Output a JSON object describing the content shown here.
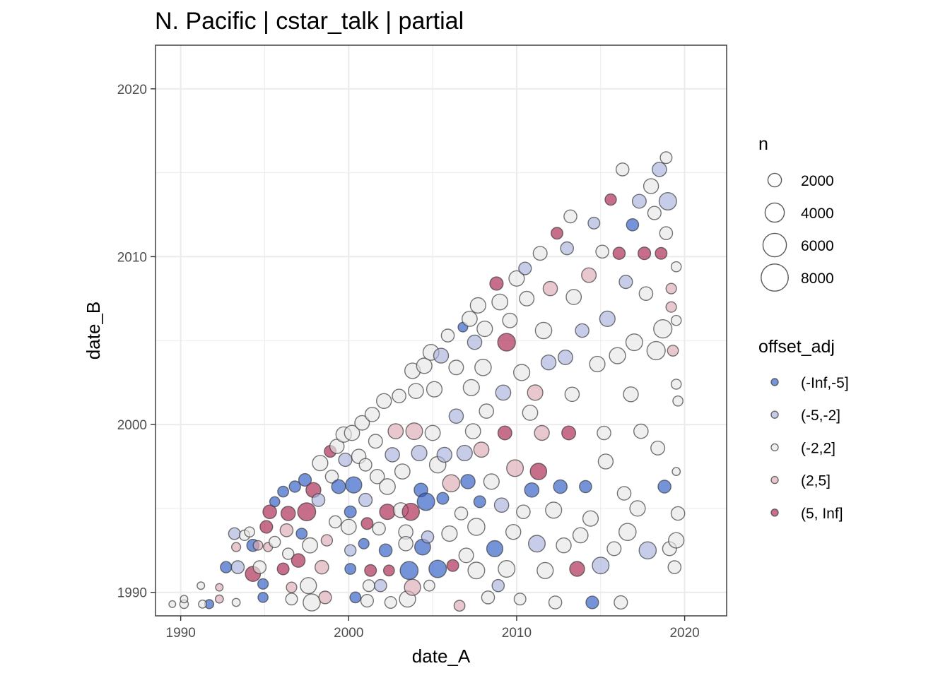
{
  "chart_data": {
    "type": "scatter",
    "title": "N. Pacific | cstar_talk | partial",
    "xlabel": "date_A",
    "ylabel": "date_B",
    "xlim": [
      1988.5,
      2022.5
    ],
    "ylim": [
      1988.6,
      2022.6
    ],
    "x_ticks": [
      1990,
      2000,
      2010,
      2020
    ],
    "y_ticks": [
      1990,
      2000,
      2010,
      2020
    ],
    "x_tick_labels": [
      "1990",
      "2000",
      "2010",
      "2020"
    ],
    "y_tick_labels": [
      "1990",
      "2000",
      "2010",
      "2020"
    ],
    "grid": true,
    "size_legend": {
      "title": "n",
      "breaks": [
        2000,
        4000,
        6000,
        8000
      ],
      "labels": [
        "2000",
        "4000",
        "6000",
        "8000"
      ]
    },
    "color_legend": {
      "title": "offset_adj",
      "categories": [
        "(-Inf,-5]",
        "(-5,-2]",
        "(-2,2]",
        "(2,5]",
        "(5, Inf]"
      ],
      "colors": [
        "#2b59c3",
        "#a9b2dc",
        "#e6e6e6",
        "#dcaab3",
        "#a8214b"
      ]
    },
    "legend_position": "right",
    "points": [
      [
        1989.5,
        1989.3,
        "(-2,2]",
        500
      ],
      [
        1990.2,
        1989.3,
        "(-2,2]",
        800
      ],
      [
        1990.2,
        1989.6,
        "(-2,2]",
        600
      ],
      [
        1991.2,
        1990.4,
        "(-2,2]",
        600
      ],
      [
        1991.7,
        1989.3,
        "(-Inf,-5]",
        900
      ],
      [
        1991.3,
        1989.3,
        "(-2,2]",
        700
      ],
      [
        1992.3,
        1990.3,
        "(2,5]",
        600
      ],
      [
        1992.3,
        1989.6,
        "(2,5]",
        700
      ],
      [
        1993.3,
        1989.4,
        "(-2,2]",
        700
      ],
      [
        1992.7,
        1991.5,
        "(-Inf,-5]",
        1400
      ],
      [
        1993.4,
        1991.5,
        "(-5,-2]",
        1800
      ],
      [
        1993.3,
        1992.7,
        "(2,5]",
        900
      ],
      [
        1993.2,
        1993.5,
        "(-5,-2]",
        1500
      ],
      [
        1993.8,
        1993.4,
        "(-2,2]",
        1200
      ],
      [
        1994.1,
        1993.6,
        "(-2,2]",
        1100
      ],
      [
        1994.3,
        1991.1,
        "(5, Inf]",
        2500
      ],
      [
        1994.7,
        1991.5,
        "(-2,2]",
        1800
      ],
      [
        1994.3,
        1992.8,
        "(-Inf,-5]",
        1600
      ],
      [
        1994.6,
        1992.8,
        "(2,5]",
        1000
      ],
      [
        1994.9,
        1990.5,
        "(-Inf,-5]",
        1200
      ],
      [
        1994.9,
        1989.7,
        "(-Inf,-5]",
        1100
      ],
      [
        1995.2,
        1992.7,
        "(2,5]",
        900
      ],
      [
        1995.1,
        1993.9,
        "(5, Inf]",
        1700
      ],
      [
        1995.3,
        1994.8,
        "(5, Inf]",
        2000
      ],
      [
        1995.6,
        1995.4,
        "(-Inf,-5]",
        1100
      ],
      [
        1995.6,
        1993.0,
        "(-2,2]",
        1400
      ],
      [
        1996.1,
        1991.4,
        "(5, Inf]",
        1500
      ],
      [
        1996.1,
        1996.0,
        "(-Inf,-5]",
        1300
      ],
      [
        1996.3,
        1993.7,
        "(2,5]",
        1800
      ],
      [
        1996.4,
        1992.3,
        "(-2,2]",
        1400
      ],
      [
        1996.6,
        1990.3,
        "(2,5]",
        1200
      ],
      [
        1996.6,
        1989.6,
        "(-2,2]",
        1500
      ],
      [
        1996.4,
        1994.7,
        "(5, Inf]",
        2200
      ],
      [
        1996.8,
        1996.3,
        "(-Inf,-5]",
        1400
      ],
      [
        1997.0,
        1991.9,
        "(5, Inf]",
        2000
      ],
      [
        1997.2,
        1993.5,
        "(-Inf,-5]",
        1300
      ],
      [
        1997.4,
        1996.7,
        "(-Inf,-5]",
        1700
      ],
      [
        1997.5,
        1994.8,
        "(5, Inf]",
        3500
      ],
      [
        1997.7,
        1992.8,
        "(-2,2]",
        2500
      ],
      [
        1997.6,
        1990.4,
        "(-2,2]",
        2800
      ],
      [
        1997.8,
        1989.4,
        "(-2,2]",
        3200
      ],
      [
        1997.9,
        1996.1,
        "(5, Inf]",
        2400
      ],
      [
        1998.2,
        1995.5,
        "(-5,-2]",
        1800
      ],
      [
        1998.4,
        1991.5,
        "(2,5]",
        2000
      ],
      [
        1998.3,
        1997.7,
        "(-2,2]",
        2600
      ],
      [
        1998.6,
        1989.7,
        "(2,5]",
        1700
      ],
      [
        1998.7,
        1993.1,
        "(2,5]",
        1400
      ],
      [
        1998.9,
        1998.4,
        "(5, Inf]",
        1500
      ],
      [
        1999.0,
        1996.9,
        "(-2,2]",
        1800
      ],
      [
        1999.2,
        1994.2,
        "(-2,2]",
        1600
      ],
      [
        1999.3,
        1998.7,
        "(-2,2]",
        2200
      ],
      [
        1999.4,
        1996.3,
        "(-Inf,-5]",
        2100
      ],
      [
        1999.7,
        1999.4,
        "(-2,2]",
        2600
      ],
      [
        1999.8,
        1997.9,
        "(-5,-2]",
        1900
      ],
      [
        2000.0,
        1993.9,
        "(-2,2]",
        2500
      ],
      [
        2000.1,
        1994.8,
        "(-Inf,-5]",
        1500
      ],
      [
        2000.1,
        1992.5,
        "(-5,-2]",
        1400
      ],
      [
        2000.1,
        1991.4,
        "(-Inf,-5]",
        1300
      ],
      [
        2000.2,
        1999.5,
        "(-2,2]",
        2500
      ],
      [
        2000.3,
        1996.4,
        "(-Inf,-5]",
        2800
      ],
      [
        2000.4,
        1989.7,
        "(-Inf,-5]",
        1300
      ],
      [
        2000.6,
        1998.1,
        "(-2,2]",
        2200
      ],
      [
        2000.8,
        2000.1,
        "(-2,2]",
        2300
      ],
      [
        2000.9,
        1992.9,
        "(-Inf,-5]",
        1200
      ],
      [
        2001.0,
        1997.6,
        "(-2,2]",
        1700
      ],
      [
        2001.0,
        1995.5,
        "(-5,-2]",
        1900
      ],
      [
        2001.1,
        1994.1,
        "(5, Inf]",
        1500
      ],
      [
        2001.2,
        1990.4,
        "(-2,2]",
        1500
      ],
      [
        2001.1,
        1989.5,
        "(-2,2]",
        1700
      ],
      [
        2001.3,
        1991.3,
        "(5, Inf]",
        1500
      ],
      [
        2001.4,
        2000.6,
        "(-2,2]",
        2200
      ],
      [
        2001.6,
        1999.0,
        "(-2,2]",
        2100
      ],
      [
        2001.7,
        1996.9,
        "(-2,2]",
        2200
      ],
      [
        2001.8,
        1993.8,
        "(-2,2]",
        1800
      ],
      [
        2001.9,
        1990.4,
        "(-5,-2]",
        1600
      ],
      [
        2002.1,
        2001.4,
        "(-2,2]",
        2400
      ],
      [
        2002.2,
        1992.5,
        "(-Inf,-5]",
        1800
      ],
      [
        2002.3,
        1996.3,
        "(-2,2]",
        2700
      ],
      [
        2002.3,
        1994.8,
        "(5, Inf]",
        2600
      ],
      [
        2002.4,
        1991.3,
        "(5, Inf]",
        1300
      ],
      [
        2002.5,
        1989.4,
        "(-2,2]",
        1500
      ],
      [
        2002.6,
        1998.2,
        "(-5,-2]",
        2200
      ],
      [
        2002.8,
        1999.6,
        "(2,5]",
        2500
      ],
      [
        2003.0,
        2001.7,
        "(-2,2]",
        2000
      ],
      [
        2003.1,
        1994.9,
        "(-2,2]",
        2400
      ],
      [
        2003.2,
        1997.2,
        "(-2,2]",
        2500
      ],
      [
        2003.4,
        1993.6,
        "(-2,2]",
        2200
      ],
      [
        2003.4,
        1992.9,
        "(-2,2]",
        2200
      ],
      [
        2003.5,
        1989.6,
        "(-2,2]",
        2800
      ],
      [
        2003.6,
        1991.3,
        "(-Inf,-5]",
        3500
      ],
      [
        2003.7,
        1994.8,
        "(5, Inf]",
        3200
      ],
      [
        2003.8,
        1990.3,
        "(2,5]",
        2800
      ],
      [
        2003.8,
        2003.2,
        "(-2,2]",
        2600
      ],
      [
        2003.9,
        1999.6,
        "(2,5]",
        3000
      ],
      [
        2004.0,
        2002.0,
        "(-2,2]",
        2500
      ],
      [
        2004.2,
        1998.3,
        "(-5,-2]",
        2600
      ],
      [
        2004.3,
        1996.1,
        "(-Inf,-5]",
        2000
      ],
      [
        2004.4,
        1992.7,
        "(-Inf,-5]",
        2700
      ],
      [
        2004.5,
        2003.5,
        "(-2,2]",
        2600
      ],
      [
        2004.6,
        1995.4,
        "(-Inf,-5]",
        3300
      ],
      [
        2004.7,
        1993.3,
        "(-5,-2]",
        1600
      ],
      [
        2004.8,
        1990.4,
        "(-2,2]",
        1300
      ],
      [
        2004.9,
        2004.3,
        "(-2,2]",
        2700
      ],
      [
        2005.0,
        1999.5,
        "(-2,2]",
        2500
      ],
      [
        2005.1,
        2002.1,
        "(-2,2]",
        2600
      ],
      [
        2005.3,
        1991.4,
        "(-Inf,-5]",
        3300
      ],
      [
        2005.3,
        1997.6,
        "(-2,2]",
        2900
      ],
      [
        2005.5,
        2004.1,
        "(-5,-2]",
        2400
      ],
      [
        2005.6,
        1995.6,
        "(-Inf,-5]",
        1500
      ],
      [
        2005.7,
        1998.2,
        "(-5,-2]",
        2400
      ],
      [
        2005.9,
        2005.3,
        "(-2,2]",
        1800
      ],
      [
        2006.0,
        1993.5,
        "(-2,2]",
        2600
      ],
      [
        2006.1,
        1996.5,
        "(2,5]",
        3200
      ],
      [
        2006.2,
        1991.6,
        "(5, Inf]",
        1500
      ],
      [
        2006.4,
        2003.4,
        "(-2,2]",
        2300
      ],
      [
        2006.4,
        2000.5,
        "(-5,-2]",
        2200
      ],
      [
        2006.6,
        1989.2,
        "(2,5]",
        1300
      ],
      [
        2006.7,
        1994.7,
        "(-2,2]",
        1800
      ],
      [
        2006.8,
        2005.8,
        "(-Inf,-5]",
        1000
      ],
      [
        2006.9,
        1998.3,
        "(-5,-2]",
        2600
      ],
      [
        2007.0,
        1992.2,
        "(-2,2]",
        2300
      ],
      [
        2007.1,
        1996.6,
        "(-Inf,-5]",
        2200
      ],
      [
        2007.2,
        2006.3,
        "(-2,2]",
        2500
      ],
      [
        2007.3,
        2002.2,
        "(-2,2]",
        2800
      ],
      [
        2007.4,
        1999.6,
        "(-2,2]",
        2500
      ],
      [
        2007.5,
        2004.9,
        "(-5,-2]",
        2200
      ],
      [
        2007.6,
        1993.9,
        "(-2,2]",
        3200
      ],
      [
        2007.6,
        1991.3,
        "(-2,2]",
        3000
      ],
      [
        2007.7,
        2007.1,
        "(-2,2]",
        2600
      ],
      [
        2007.8,
        1995.4,
        "(-Inf,-5]",
        1500
      ],
      [
        2007.9,
        1998.5,
        "(2,5]",
        2500
      ],
      [
        2008.0,
        2003.4,
        "(-2,2]",
        2900
      ],
      [
        2008.1,
        2005.7,
        "(-2,2]",
        2600
      ],
      [
        2008.2,
        2000.8,
        "(-2,2]",
        2200
      ],
      [
        2008.3,
        1989.7,
        "(-2,2]",
        1800
      ],
      [
        2008.5,
        1996.6,
        "(-2,2]",
        2600
      ],
      [
        2008.7,
        1992.6,
        "(-Inf,-5]",
        2800
      ],
      [
        2008.8,
        2008.4,
        "(5, Inf]",
        1900
      ],
      [
        2008.9,
        1990.4,
        "(-5,-2]",
        1600
      ],
      [
        2009.0,
        2007.3,
        "(-2,2]",
        2700
      ],
      [
        2009.1,
        1995.2,
        "(-5,-2]",
        2200
      ],
      [
        2009.2,
        2001.9,
        "(-5,-2]",
        2500
      ],
      [
        2009.3,
        1999.5,
        "(5, Inf]",
        2100
      ],
      [
        2009.4,
        1991.4,
        "(-2,2]",
        3000
      ],
      [
        2009.4,
        2004.9,
        "(5, Inf]",
        3400
      ],
      [
        2009.6,
        2006.2,
        "(-2,2]",
        2300
      ],
      [
        2009.8,
        1993.6,
        "(-2,2]",
        2400
      ],
      [
        2009.9,
        1997.4,
        "(2,5]",
        3000
      ],
      [
        2010.0,
        2008.7,
        "(-2,2]",
        2600
      ],
      [
        2010.2,
        1989.6,
        "(-2,2]",
        1500
      ],
      [
        2010.3,
        2003.1,
        "(-2,2]",
        2800
      ],
      [
        2010.4,
        1994.8,
        "(-2,2]",
        2000
      ],
      [
        2010.5,
        2009.3,
        "(-5,-2]",
        1700
      ],
      [
        2010.6,
        2007.5,
        "(-2,2]",
        2300
      ],
      [
        2010.8,
        2000.7,
        "(-2,2]",
        2500
      ],
      [
        2010.9,
        1996.1,
        "(-Inf,-5]",
        2200
      ],
      [
        2011.1,
        2001.9,
        "(2,5]",
        2600
      ],
      [
        2011.2,
        1992.9,
        "(-5,-2]",
        3000
      ],
      [
        2011.3,
        1997.2,
        "(5, Inf]",
        2900
      ],
      [
        2011.4,
        2010.2,
        "(-2,2]",
        2100
      ],
      [
        2011.5,
        1999.5,
        "(2,5]",
        2400
      ],
      [
        2011.6,
        2005.6,
        "(-2,2]",
        2900
      ],
      [
        2011.7,
        1991.3,
        "(-2,2]",
        2800
      ],
      [
        2011.9,
        2003.7,
        "(-5,-2]",
        2400
      ],
      [
        2012.0,
        2008.1,
        "(2,5]",
        2200
      ],
      [
        2012.2,
        1994.9,
        "(-2,2]",
        2800
      ],
      [
        2012.3,
        1989.4,
        "(-2,2]",
        1800
      ],
      [
        2012.4,
        2011.4,
        "(5, Inf]",
        1500
      ],
      [
        2012.6,
        1996.3,
        "(-Inf,-5]",
        2000
      ],
      [
        2012.8,
        1992.8,
        "(-2,2]",
        2400
      ],
      [
        2012.9,
        2004.0,
        "(-5,-2]",
        2300
      ],
      [
        2013.0,
        2010.5,
        "(-5,-2]",
        1800
      ],
      [
        2013.1,
        1999.5,
        "(5, Inf]",
        2100
      ],
      [
        2013.2,
        2012.4,
        "(-2,2]",
        1800
      ],
      [
        2013.3,
        2001.8,
        "(-2,2]",
        2200
      ],
      [
        2013.4,
        2007.6,
        "(-2,2]",
        2500
      ],
      [
        2013.6,
        1991.4,
        "(5, Inf]",
        2400
      ],
      [
        2013.8,
        1993.4,
        "(-2,2]",
        2500
      ],
      [
        2013.9,
        2005.6,
        "(-5,-2]",
        2000
      ],
      [
        2014.1,
        1996.3,
        "(-Inf,-5]",
        1600
      ],
      [
        2014.3,
        2008.9,
        "(2,5]",
        2300
      ],
      [
        2014.4,
        1994.4,
        "(-2,2]",
        2600
      ],
      [
        2014.5,
        1989.4,
        "(-Inf,-5]",
        1700
      ],
      [
        2014.6,
        2012.0,
        "(-5,-2]",
        1500
      ],
      [
        2014.8,
        2003.6,
        "(-2,2]",
        2600
      ],
      [
        2015.0,
        1991.6,
        "(-5,-2]",
        3000
      ],
      [
        2015.1,
        2010.3,
        "(-2,2]",
        1800
      ],
      [
        2015.2,
        1999.5,
        "(-2,2]",
        2000
      ],
      [
        2015.3,
        1997.8,
        "(-2,2]",
        2400
      ],
      [
        2015.4,
        2006.3,
        "(-5,-2]",
        2600
      ],
      [
        2015.6,
        2013.4,
        "(5, Inf]",
        1400
      ],
      [
        2015.8,
        1992.6,
        "(-2,2]",
        2100
      ],
      [
        2016.0,
        2004.1,
        "(-2,2]",
        2800
      ],
      [
        2016.1,
        2010.2,
        "(5, Inf]",
        1600
      ],
      [
        2016.2,
        1989.4,
        "(-2,2]",
        1900
      ],
      [
        2016.3,
        2015.2,
        "(-2,2]",
        1800
      ],
      [
        2016.4,
        1995.9,
        "(-2,2]",
        2000
      ],
      [
        2016.5,
        2008.5,
        "(-5,-2]",
        1900
      ],
      [
        2016.6,
        1993.6,
        "(-2,2]",
        3200
      ],
      [
        2016.8,
        2001.8,
        "(-2,2]",
        2400
      ],
      [
        2016.9,
        2011.9,
        "(-Inf,-5]",
        1600
      ],
      [
        2017.0,
        2004.9,
        "(-2,2]",
        3000
      ],
      [
        2017.2,
        1995.0,
        "(-2,2]",
        2600
      ],
      [
        2017.3,
        2013.3,
        "(-5,-2]",
        2100
      ],
      [
        2017.4,
        1999.6,
        "(-2,2]",
        2200
      ],
      [
        2017.6,
        2010.2,
        "(5, Inf]",
        1700
      ],
      [
        2017.7,
        2007.8,
        "(-2,2]",
        2000
      ],
      [
        2017.8,
        1992.5,
        "(-5,-2]",
        3200
      ],
      [
        2018.0,
        2014.2,
        "(-2,2]",
        2400
      ],
      [
        2018.2,
        2012.6,
        "(-2,2]",
        1900
      ],
      [
        2018.3,
        2004.4,
        "(-2,2]",
        3600
      ],
      [
        2018.4,
        1998.6,
        "(-2,2]",
        2100
      ],
      [
        2018.5,
        2015.2,
        "(-5,-2]",
        2200
      ],
      [
        2018.6,
        2010.2,
        "(5, Inf]",
        1500
      ],
      [
        2018.7,
        2005.7,
        "(-2,2]",
        3600
      ],
      [
        2018.8,
        1996.3,
        "(-Inf,-5]",
        1800
      ],
      [
        2018.9,
        2015.9,
        "(-2,2]",
        1500
      ],
      [
        2018.9,
        2011.4,
        "(-2,2]",
        1800
      ],
      [
        2019.0,
        2013.3,
        "(-5,-2]",
        3300
      ],
      [
        2019.1,
        1992.6,
        "(-2,2]",
        2100
      ],
      [
        2019.2,
        2008.1,
        "(2,5]",
        1200
      ],
      [
        2019.2,
        2007.0,
        "(2,5]",
        1200
      ],
      [
        2019.3,
        2004.4,
        "(2,5]",
        1300
      ],
      [
        2019.4,
        1991.5,
        "(-2,2]",
        1800
      ],
      [
        2019.5,
        2009.4,
        "(-2,2]",
        1100
      ],
      [
        2019.5,
        2006.2,
        "(-2,2]",
        1100
      ],
      [
        2019.5,
        2002.4,
        "(-2,2]",
        1100
      ],
      [
        2019.5,
        1997.2,
        "(-2,2]",
        700
      ],
      [
        2019.6,
        1994.7,
        "(-2,2]",
        2000
      ],
      [
        2019.5,
        1993.1,
        "(-2,2]",
        2600
      ],
      [
        2019.6,
        2001.4,
        "(-2,2]",
        1100
      ]
    ]
  }
}
